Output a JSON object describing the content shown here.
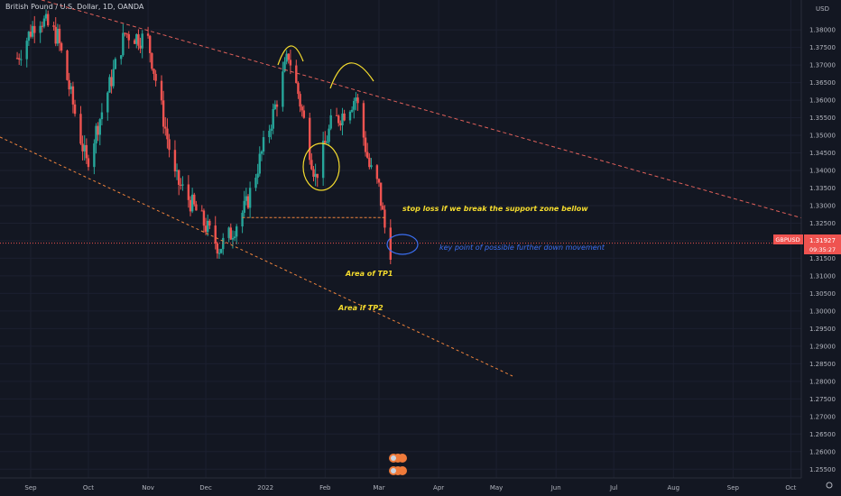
{
  "chart_data": {
    "type": "candlestick",
    "title": "British Pound / U.S. Dollar, 1D, OANDA",
    "currency": "USD",
    "symbol": "GBPUSD",
    "last_price": "1.31927",
    "countdown": "09:35:27",
    "ylim": [
      1.2525,
      1.3885
    ],
    "yticks": [
      "1.38000",
      "1.37500",
      "1.37000",
      "1.36500",
      "1.36000",
      "1.35500",
      "1.35000",
      "1.34500",
      "1.34000",
      "1.33500",
      "1.33000",
      "1.32500",
      "1.32000",
      "1.31500",
      "1.31000",
      "1.30500",
      "1.30000",
      "1.29500",
      "1.29000",
      "1.28500",
      "1.28000",
      "1.27500",
      "1.27000",
      "1.26500",
      "1.26000",
      "1.25500"
    ],
    "xticks": [
      "Sep",
      "Oct",
      "Nov",
      "Dec",
      "2022",
      "Feb",
      "Mar",
      "Apr",
      "May",
      "Jun",
      "Jul",
      "Aug",
      "Sep",
      "Oct"
    ],
    "price_path": [
      [
        "2021-08-25",
        1.372
      ],
      [
        "2021-09-05",
        1.384
      ],
      [
        "2021-09-15",
        1.378
      ],
      [
        "2021-09-30",
        1.342
      ],
      [
        "2021-10-20",
        1.379
      ],
      [
        "2021-11-01",
        1.377
      ],
      [
        "2021-11-15",
        1.338
      ],
      [
        "2021-12-08",
        1.318
      ],
      [
        "2021-12-14",
        1.322
      ],
      [
        "2021-12-22",
        1.33
      ],
      [
        "2022-01-05",
        1.356
      ],
      [
        "2022-01-13",
        1.373
      ],
      [
        "2022-01-18",
        1.362
      ],
      [
        "2022-01-27",
        1.338
      ],
      [
        "2022-02-04",
        1.353
      ],
      [
        "2022-02-10",
        1.356
      ],
      [
        "2022-02-17",
        1.361
      ],
      [
        "2022-02-24",
        1.341
      ],
      [
        "2022-03-01",
        1.335
      ],
      [
        "2022-03-05",
        1.32
      ],
      [
        "2022-03-07",
        1.3175
      ]
    ],
    "annotations": {
      "stop_loss": "stop loss if we break the support zone bellow",
      "key_point": "key point of possible further down movement",
      "tp1": "Area of TP1",
      "tp2": "Area if TP2"
    },
    "colors": {
      "bull": "#26a69a",
      "bear": "#ef5350",
      "trendline": "#e0605a",
      "support": "#f0843c",
      "highlight_yellow": "#f5dc2e",
      "highlight_blue": "#3b6ff2",
      "price_line": "#ef5350"
    }
  }
}
